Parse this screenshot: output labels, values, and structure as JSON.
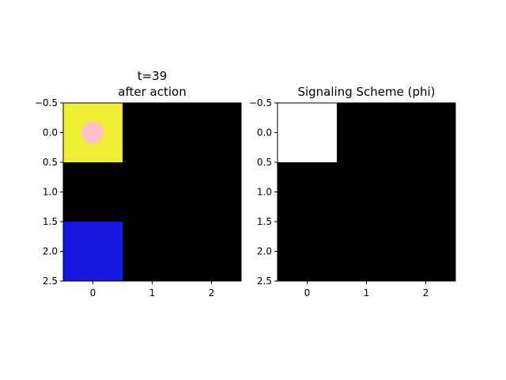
{
  "chart_data": [
    {
      "type": "heatmap",
      "title_line1": "t=39",
      "title_line2": "after action",
      "xticks": [
        "0",
        "1",
        "2"
      ],
      "yticks": [
        "−0.5",
        "0.0",
        "0.5",
        "1.0",
        "1.5",
        "2.0",
        "2.5"
      ],
      "xlim": [
        -0.5,
        2.5
      ],
      "ylim": [
        2.5,
        -0.5
      ],
      "grid_colors": [
        [
          "#eeee33",
          "#000000",
          "#000000"
        ],
        [
          "#000000",
          "#000000",
          "#000000"
        ],
        [
          "#1717e0",
          "#000000",
          "#000000"
        ]
      ],
      "agent": {
        "row": 0,
        "col": 0,
        "color": "#ffc0cb"
      }
    },
    {
      "type": "heatmap",
      "title": "Signaling Scheme (phi)",
      "xticks": [
        "0",
        "1",
        "2"
      ],
      "yticks": [
        "−0.5",
        "0.0",
        "0.5",
        "1.0",
        "1.5",
        "2.0",
        "2.5"
      ],
      "xlim": [
        -0.5,
        2.5
      ],
      "ylim": [
        2.5,
        -0.5
      ],
      "grid_colors": [
        [
          "#ffffff",
          "#000000",
          "#000000"
        ],
        [
          "#000000",
          "#000000",
          "#000000"
        ],
        [
          "#000000",
          "#000000",
          "#000000"
        ]
      ]
    }
  ]
}
